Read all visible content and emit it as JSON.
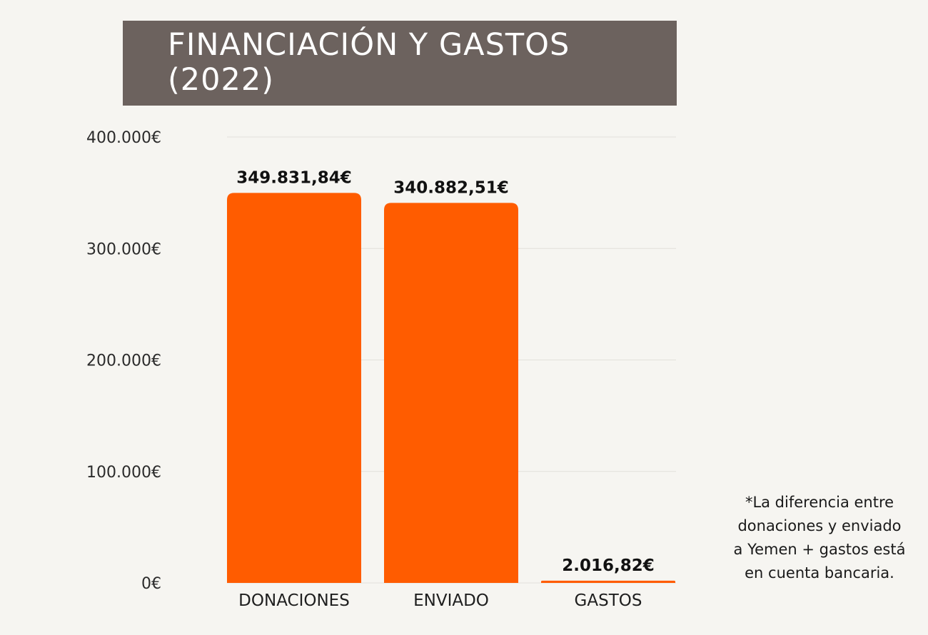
{
  "chart_data": {
    "type": "bar",
    "title": "FINANCIACIÓN Y GASTOS\n(2022)",
    "categories": [
      "DONACIONES",
      "ENVIADO",
      "GASTOS"
    ],
    "values": [
      349831.84,
      340882.51,
      2016.82
    ],
    "value_labels": [
      "349.831,84€",
      "340.882,51€",
      "2.016,82€"
    ],
    "ylim": [
      0,
      400000
    ],
    "yticks": [
      0,
      100000,
      200000,
      300000,
      400000
    ],
    "ytick_labels": [
      "0€",
      "100.000€",
      "200.000€",
      "300.000€",
      "400.000€"
    ],
    "xlabel": "",
    "ylabel": "",
    "grid": true,
    "bar_color": "#ff5c00",
    "grid_color": "#e2e0da"
  },
  "footnote": {
    "lines": [
      "*La diferencia entre",
      "donaciones y enviado",
      "a Yemen + gastos está",
      "en cuenta bancaria."
    ]
  },
  "colors": {
    "background": "#f6f5f1",
    "title_box": "#6c625e",
    "title_text": "#ffffff"
  }
}
